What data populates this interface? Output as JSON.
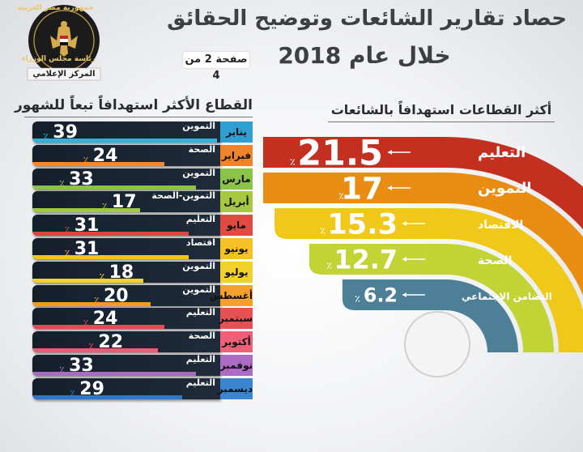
{
  "header": {
    "title": "حصاد تقارير الشائعات وتوضيح الحقائق",
    "subtitle": "خلال عام 2018",
    "page_indicator": "صفحة 2 من 4"
  },
  "logo": {
    "top_text": "جمهورية مصر العربية",
    "middle_text": "رئاسة مجلس الوزراء",
    "bottom_text": "المركز الإعلامي"
  },
  "colors": {
    "education": "#c3301f",
    "supply": "#e98c12",
    "economy": "#f0c81a",
    "health": "#c2d336",
    "social": "#4d7f97",
    "month_bar": "#1c2735"
  },
  "chart_data": [
    {
      "type": "bar",
      "title": "القطاع الأكثر استهدافاً تبعاً للشهور",
      "percent_sign": "٪",
      "categories": [
        "يناير",
        "فبراير",
        "مارس",
        "أبريل",
        "مايو",
        "يونيو",
        "يوليو",
        "أغسطس",
        "سبتمبر",
        "أكتوبر",
        "نوفمبر",
        "ديسمبر"
      ],
      "sectors": [
        "التموين",
        "الصحة",
        "التموين",
        "التموين-الصحة",
        "التعليم",
        "اقتصاد",
        "التموين",
        "التموين",
        "التعليم",
        "الصحة",
        "التعليم",
        "التعليم"
      ],
      "values": [
        39,
        24,
        33,
        17,
        31,
        31,
        18,
        20,
        24,
        22,
        33,
        29
      ],
      "accent_colors": [
        "#36b0d8",
        "#f18a2e",
        "#8bc34a",
        "#9fca3f",
        "#e0443e",
        "#f5c31e",
        "#f3d327",
        "#f39b24",
        "#e8494f",
        "#ec5a75",
        "#a96ac2",
        "#2f78c2"
      ],
      "label_colors": [
        "#2e9fd0",
        "#f0842a",
        "#8bc34a",
        "#a7c941",
        "#e04a40",
        "#f5c125",
        "#f2d12b",
        "#f5a02c",
        "#e65153",
        "#ec6078",
        "#ac6cc4",
        "#3b86cf"
      ]
    },
    {
      "type": "bar",
      "title": "أكثر القطاعات استهدافاً بالشائعات",
      "percent_sign": "٪",
      "categories": [
        "التعليم",
        "التموين",
        "الاقتصاد",
        "الصحة",
        "التضامن الاجتماعي"
      ],
      "values": [
        21.5,
        17,
        15.3,
        12.7,
        6.2
      ],
      "colors": [
        "#c3301f",
        "#e98c12",
        "#f0c81a",
        "#c2d336",
        "#4d7f97"
      ]
    }
  ]
}
